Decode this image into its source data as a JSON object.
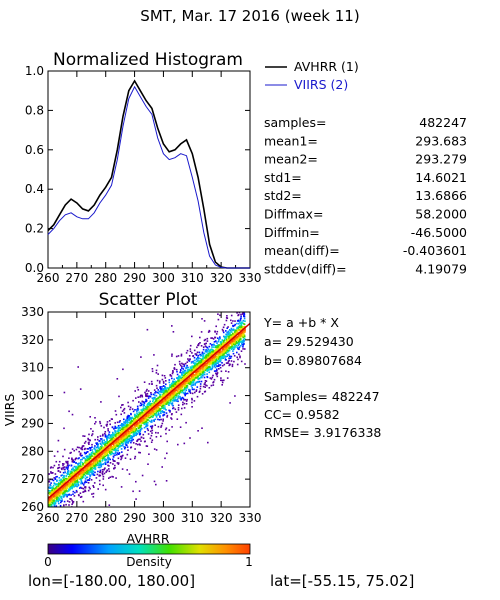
{
  "header": "SMT,  Mar. 17 2016 (week 11)",
  "chart_data": [
    {
      "type": "line",
      "title": "Normalized Histogram",
      "xlim": [
        260,
        330
      ],
      "ylim": [
        0,
        1
      ],
      "x_ticks": [
        "260",
        "270",
        "280",
        "290",
        "300",
        "310",
        "320",
        "330"
      ],
      "y_ticks": [
        "0.0",
        "0.2",
        "0.4",
        "0.6",
        "0.8",
        "1.0"
      ],
      "legend_position": "top-right",
      "colors": {
        "avhrr": "#000000",
        "viirs": "#1a1acc"
      },
      "series": [
        {
          "name": "AVHRR (1)",
          "x": [
            260,
            262,
            264,
            266,
            268,
            270,
            272,
            274,
            276,
            278,
            280,
            282,
            284,
            286,
            288,
            290,
            292,
            294,
            296,
            298,
            300,
            302,
            304,
            306,
            308,
            310,
            312,
            314,
            316,
            318,
            320,
            322,
            324,
            326,
            328,
            330
          ],
          "y": [
            0.19,
            0.22,
            0.27,
            0.32,
            0.35,
            0.33,
            0.3,
            0.29,
            0.32,
            0.37,
            0.41,
            0.46,
            0.6,
            0.77,
            0.9,
            0.95,
            0.9,
            0.85,
            0.81,
            0.71,
            0.63,
            0.59,
            0.6,
            0.63,
            0.65,
            0.58,
            0.46,
            0.3,
            0.12,
            0.03,
            0.005,
            0.0,
            0.0,
            0.0,
            0.0,
            0.0
          ]
        },
        {
          "name": "VIIRS (2)",
          "x": [
            260,
            262,
            264,
            266,
            268,
            270,
            272,
            274,
            276,
            278,
            280,
            282,
            284,
            286,
            288,
            290,
            292,
            294,
            296,
            298,
            300,
            302,
            304,
            306,
            308,
            310,
            312,
            314,
            316,
            318,
            320,
            322,
            324,
            326,
            328,
            330
          ],
          "y": [
            0.17,
            0.2,
            0.24,
            0.27,
            0.28,
            0.26,
            0.25,
            0.25,
            0.28,
            0.33,
            0.37,
            0.42,
            0.55,
            0.72,
            0.86,
            0.92,
            0.87,
            0.82,
            0.78,
            0.66,
            0.58,
            0.55,
            0.56,
            0.58,
            0.57,
            0.46,
            0.34,
            0.18,
            0.06,
            0.015,
            0.003,
            0.0,
            0.0,
            0.0,
            0.0,
            0.0
          ]
        }
      ]
    },
    {
      "type": "heatmap",
      "title": "Scatter Plot",
      "xlabel": "AVHRR",
      "ylabel": "VIIRS",
      "xlim": [
        260,
        330
      ],
      "ylim": [
        260,
        330
      ],
      "x_ticks": [
        "260",
        "270",
        "280",
        "290",
        "300",
        "310",
        "320",
        "330"
      ],
      "y_ticks": [
        "260",
        "270",
        "280",
        "290",
        "300",
        "310",
        "320",
        "330"
      ],
      "fit_line": {
        "a": 29.52943,
        "b": 0.89807684,
        "color": "#cc0000"
      },
      "colorbar": {
        "label": "Density",
        "min": "0",
        "max": "1"
      }
    }
  ],
  "legend": {
    "avhrr": "AVHRR (1)",
    "viirs": "VIIRS (2)"
  },
  "hist_stats": [
    {
      "label": "samples=",
      "value": "482247"
    },
    {
      "label": "mean1=",
      "value": "293.683"
    },
    {
      "label": "mean2=",
      "value": "293.279"
    },
    {
      "label": "std1=",
      "value": "14.6021"
    },
    {
      "label": "std2=",
      "value": "13.6866"
    },
    {
      "label": "Diffmax=",
      "value": "58.2000"
    },
    {
      "label": "Diffmin=",
      "value": "-46.5000"
    },
    {
      "label": "mean(diff)=",
      "value": "-0.403601"
    },
    {
      "label": "stddev(diff)=",
      "value": "4.19079"
    }
  ],
  "regression": {
    "equation": "Y= a +b * X",
    "a_line": "a= 29.529430",
    "b_line": "b= 0.89807684",
    "samples_line": "Samples= 482247",
    "cc_line": "CC=  0.9582",
    "rmse_line": "RMSE= 3.9176338"
  },
  "footer": {
    "lon": "lon=[-180.00, 180.00]",
    "lat": "lat=[-55.15, 75.02]"
  }
}
